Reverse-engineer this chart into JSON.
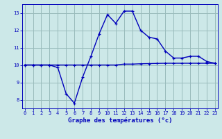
{
  "x": [
    0,
    1,
    2,
    3,
    4,
    5,
    6,
    7,
    8,
    9,
    10,
    11,
    12,
    13,
    14,
    15,
    16,
    17,
    18,
    19,
    20,
    21,
    22,
    23
  ],
  "y_wave": [
    10.0,
    10.0,
    10.0,
    10.0,
    9.85,
    8.35,
    7.8,
    9.3,
    10.5,
    11.8,
    12.9,
    12.4,
    13.1,
    13.1,
    12.0,
    11.6,
    11.5,
    10.8,
    10.4,
    10.4,
    10.5,
    10.5,
    10.2,
    10.1
  ],
  "y_flat": [
    10.0,
    10.0,
    10.0,
    10.0,
    10.0,
    10.0,
    10.0,
    10.0,
    10.0,
    10.0,
    10.0,
    10.0,
    10.05,
    10.05,
    10.07,
    10.08,
    10.09,
    10.1,
    10.1,
    10.1,
    10.1,
    10.1,
    10.1,
    10.1
  ],
  "line_color": "#0000bb",
  "bg_color": "#cce8e8",
  "plot_bg_color": "#cce8e8",
  "grid_color": "#99bbbb",
  "xlabel": "Graphe des températures (°c)",
  "xlabel_color": "#0000bb",
  "tick_color": "#0000bb",
  "axis_color": "#0000bb",
  "ylim": [
    7.5,
    13.5
  ],
  "xlim": [
    -0.3,
    23.3
  ],
  "yticks": [
    8,
    9,
    10,
    11,
    12,
    13
  ],
  "xticks": [
    0,
    1,
    2,
    3,
    4,
    5,
    6,
    7,
    8,
    9,
    10,
    11,
    12,
    13,
    14,
    15,
    16,
    17,
    18,
    19,
    20,
    21,
    22,
    23
  ],
  "xlabel_fontsize": 6.5,
  "tick_fontsize": 5.0
}
